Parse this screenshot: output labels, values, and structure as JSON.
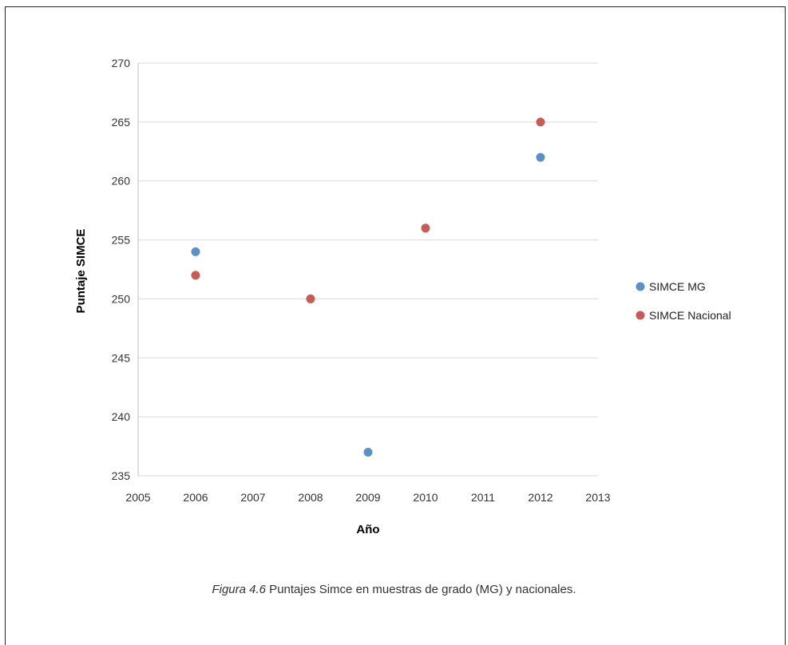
{
  "caption": {
    "label": "Figura 4.6",
    "text": " Puntajes Simce en muestras de grado (MG) y nacionales."
  },
  "chart_data": {
    "type": "scatter",
    "title": "",
    "xlabel": "Año",
    "ylabel": "Puntaje SIMCE",
    "xlim": [
      2005,
      2013
    ],
    "ylim": [
      235,
      270
    ],
    "xticks": [
      2005,
      2006,
      2007,
      2008,
      2009,
      2010,
      2011,
      2012,
      2013
    ],
    "yticks": [
      235,
      240,
      245,
      250,
      255,
      260,
      265,
      270
    ],
    "grid": "horizontal",
    "legend_position": "right",
    "series": [
      {
        "name": "SIMCE MG",
        "color": "#5b8fc7",
        "points": [
          {
            "x": 2006,
            "y": 254
          },
          {
            "x": 2009,
            "y": 237
          },
          {
            "x": 2012,
            "y": 262
          }
        ]
      },
      {
        "name": "SIMCE Nacional",
        "color": "#c65b57",
        "points": [
          {
            "x": 2006,
            "y": 252
          },
          {
            "x": 2008,
            "y": 250
          },
          {
            "x": 2010,
            "y": 256
          },
          {
            "x": 2012,
            "y": 265
          }
        ]
      }
    ]
  }
}
